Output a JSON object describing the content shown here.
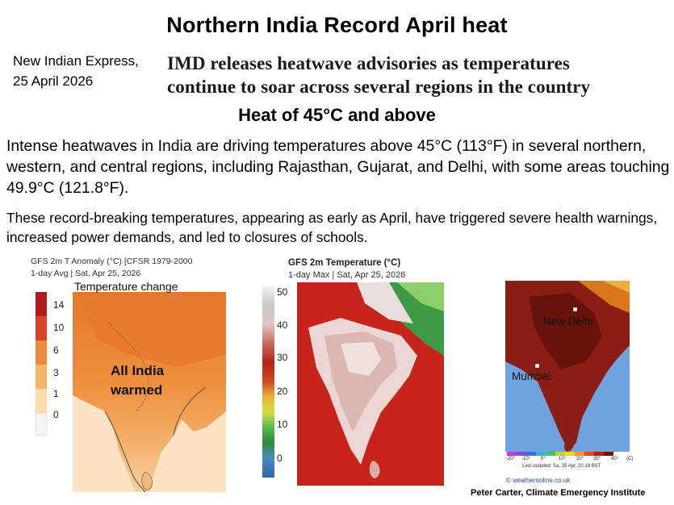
{
  "title": "Northern India Record April heat",
  "source": {
    "name": "New Indian Express,",
    "date": "25 April 2026"
  },
  "headline": {
    "line1": "IMD releases heatwave advisories as temperatures",
    "line2": "continue to soar across several regions in the country"
  },
  "subhead": "Heat of 45°C and above",
  "paragraph1": "Intense heatwaves in India are driving temperatures above 45°C  (113°F)  in several northern, western, and central regions, including Rajasthan, Gujarat, and Delhi, with some areas touching  49.9°C  (121.8°F).",
  "paragraph2": "These record-breaking temperatures, appearing as early as April, have triggered severe health warnings, increased power demands, and led to closures of schools.",
  "map_anomaly": {
    "title": "GFS 2m T Anomaly (°C) [CFSR 1979-2000",
    "subtitle": "1-day Avg | Sat, Apr 25, 2026",
    "label": "Temperature change",
    "overlay_line1": "All India",
    "overlay_line2": "warmed",
    "scale_ticks": [
      "14",
      "10",
      "6",
      "3",
      "1",
      "0"
    ],
    "scale_colors": [
      "#b11c1c",
      "#d6452a",
      "#ee8a3e",
      "#f6b56d",
      "#fadcae",
      "#f2f2f2"
    ]
  },
  "map_temperature": {
    "title": "GFS 2m Temperature (°C)",
    "subtitle": "1-day Max | Sat, Apr 25, 2026",
    "scale_ticks": [
      "50",
      "40",
      "30",
      "20",
      "10",
      "0"
    ]
  },
  "map_weatheronline": {
    "cities": [
      "New Delhi",
      "Mumbai"
    ],
    "scale_ticks": [
      "-20°",
      "-10°",
      "0°",
      "10°",
      "20°",
      "30°",
      "40°",
      "(C)"
    ],
    "updated": "Last updated: Sa, 25 Apr, 20:18 BST",
    "credit": "© weatheronline.co.uk"
  },
  "attribution": "Peter Carter, Climate Emergency Institute"
}
